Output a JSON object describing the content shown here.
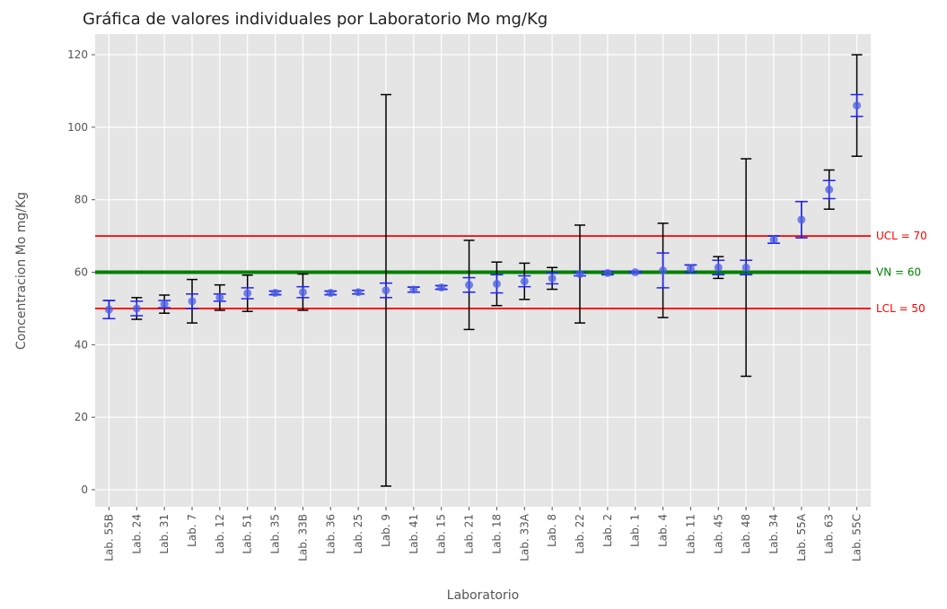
{
  "chart_data": {
    "type": "errorbar",
    "title": "Gráfica de valores individuales por Laboratorio Mo mg/Kg",
    "x_label": "Laboratorio",
    "y_label": "Concentracion Mo mg/Kg",
    "categories": [
      "Lab. 55B",
      "Lab. 24",
      "Lab. 31",
      "Lab. 7",
      "Lab. 12",
      "Lab. 51",
      "Lab. 35",
      "Lab. 33B",
      "Lab. 36",
      "Lab. 25",
      "Lab. 9",
      "Lab. 41",
      "Lab. 15",
      "Lab. 21",
      "Lab. 18",
      "Lab. 33A",
      "Lab. 8",
      "Lab. 22",
      "Lab. 2",
      "Lab. 1",
      "Lab. 4",
      "Lab. 11",
      "Lab. 45",
      "Lab. 48",
      "Lab. 34",
      "Lab. 55A",
      "Lab. 63",
      "Lab. 55C"
    ],
    "values": [
      49.7,
      50,
      51.2,
      52,
      53,
      54.2,
      54.3,
      54.5,
      54.3,
      54.5,
      55,
      55.2,
      55.8,
      56.5,
      56.8,
      57.5,
      58.3,
      59.5,
      59.8,
      60,
      60.5,
      61,
      61.3,
      61.3,
      69,
      74.5,
      82.8,
      106
    ],
    "error_outer": [
      2.5,
      3,
      2.5,
      6,
      3.5,
      5,
      0.5,
      5,
      0.5,
      0.5,
      54,
      0.7,
      0.5,
      12.3,
      6,
      5,
      3,
      13.5,
      0.5,
      0.3,
      13,
      1,
      3,
      30,
      1,
      5,
      5.4,
      14
    ],
    "error_inner": [
      2.5,
      2,
      1,
      2,
      1,
      1.5,
      0.5,
      1.5,
      0.5,
      0.5,
      2,
      0.7,
      0.5,
      2,
      2.5,
      1.5,
      1.5,
      0.5,
      0.5,
      0.3,
      4.8,
      1,
      2,
      2,
      1,
      5,
      2.5,
      3
    ],
    "outer_color": "#000000",
    "inner_color": "#2020ff",
    "marker_color": "#4a5ee0",
    "reference_lines": [
      {
        "value": 70,
        "label": "UCL = 70",
        "color": "#ff0000"
      },
      {
        "value": 60,
        "label": "VN = 60",
        "color": "#008000"
      },
      {
        "value": 50,
        "label": "LCL = 50",
        "color": "#ff0000"
      }
    ],
    "ylim": [
      -4.7,
      125.7
    ],
    "yticks": [
      0,
      20,
      40,
      60,
      80,
      100,
      120
    ],
    "grid": true
  }
}
